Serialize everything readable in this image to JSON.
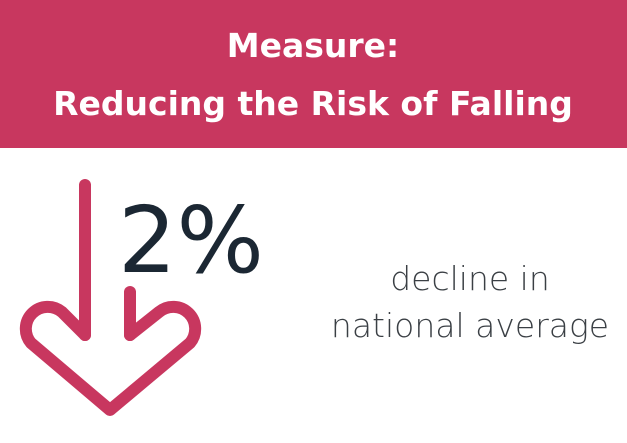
{
  "header": {
    "title_lines": [
      "Measure:",
      "Reducing the Risk of Falling"
    ]
  },
  "stat": {
    "value": "2%",
    "description_lines": [
      "decline in",
      "national average"
    ]
  }
}
